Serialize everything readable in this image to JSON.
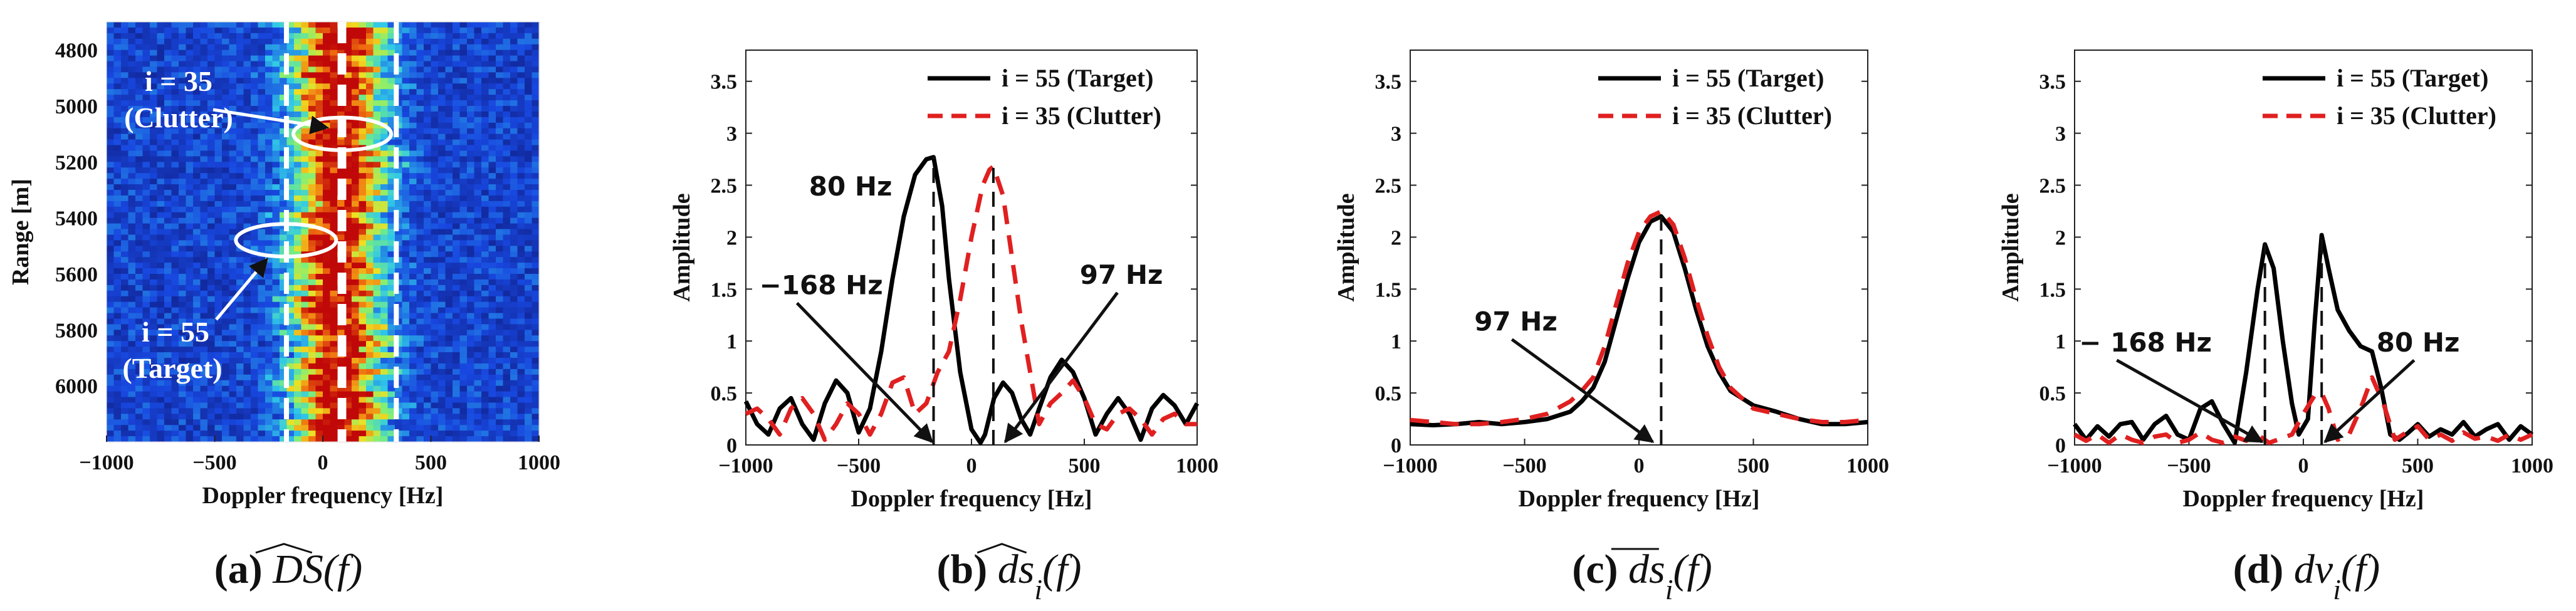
{
  "chart_data": [
    {
      "id": "a",
      "type": "heatmap",
      "caption": {
        "label": "(a)",
        "expr": "DS(f)",
        "hat": true
      },
      "xlabel": "Doppler frequency [Hz]",
      "ylabel": "Range [m]",
      "xlim": [
        -1000,
        1000
      ],
      "ylim": [
        6200,
        4700
      ],
      "xticks": [
        -1000,
        -500,
        0,
        500,
        1000
      ],
      "yticks": [
        4800,
        5000,
        5200,
        5400,
        5600,
        5800,
        6000
      ],
      "clutter_band_hz": [
        -150,
        300
      ],
      "dashed_lines_hz": [
        -168,
        80,
        97,
        340
      ],
      "annotations": [
        {
          "line1": "i = 35",
          "line2": "(Clutter)",
          "range_m": 5100,
          "freq_hz": 50
        },
        {
          "line1": "i = 55",
          "line2": "(Target)",
          "range_m": 5480,
          "freq_hz": -200
        }
      ],
      "colors": {
        "low": "#1040d0",
        "mid": "#34e0d0",
        "high": "#d01010"
      }
    },
    {
      "id": "b",
      "type": "line",
      "caption": {
        "label": "(b)",
        "expr": "ds",
        "sub": "i",
        "arg": "(f)",
        "hat": true
      },
      "xlabel": "Doppler frequency [Hz]",
      "ylabel": "Amplitude",
      "xlim": [
        -1000,
        1000
      ],
      "ylim": [
        0,
        3.8
      ],
      "xticks": [
        -1000,
        -500,
        0,
        500,
        1000
      ],
      "yticks": [
        0,
        0.5,
        1,
        1.5,
        2,
        2.5,
        3,
        3.5
      ],
      "legend": [
        "i = 55 (Target)",
        "i = 35 (Clutter)"
      ],
      "series": [
        {
          "name": "i = 55 (Target)",
          "style": "solid",
          "color": "#000000",
          "x": [
            -1000,
            -950,
            -900,
            -850,
            -800,
            -750,
            -700,
            -650,
            -600,
            -550,
            -500,
            -450,
            -400,
            -350,
            -300,
            -250,
            -200,
            -168,
            -130,
            -100,
            -50,
            0,
            40,
            60,
            100,
            140,
            180,
            220,
            260,
            300,
            350,
            400,
            450,
            500,
            550,
            600,
            650,
            700,
            750,
            800,
            850,
            900,
            950,
            1000
          ],
          "y": [
            0.42,
            0.2,
            0.1,
            0.35,
            0.45,
            0.2,
            0.05,
            0.4,
            0.62,
            0.5,
            0.12,
            0.35,
            0.9,
            1.6,
            2.2,
            2.6,
            2.75,
            2.77,
            2.3,
            1.6,
            0.7,
            0.15,
            0.02,
            0.1,
            0.45,
            0.6,
            0.5,
            0.25,
            0.1,
            0.35,
            0.65,
            0.82,
            0.7,
            0.45,
            0.1,
            0.3,
            0.45,
            0.3,
            0.05,
            0.35,
            0.48,
            0.38,
            0.2,
            0.4
          ]
        },
        {
          "name": "i = 35 (Clutter)",
          "style": "dashed",
          "color": "#e02020",
          "x": [
            -1000,
            -950,
            -900,
            -850,
            -800,
            -750,
            -700,
            -650,
            -600,
            -550,
            -500,
            -450,
            -400,
            -350,
            -300,
            -250,
            -200,
            -150,
            -100,
            -50,
            0,
            50,
            80,
            97,
            140,
            180,
            220,
            260,
            300,
            350,
            400,
            450,
            500,
            550,
            600,
            650,
            700,
            750,
            800,
            850,
            900,
            950,
            1000
          ],
          "y": [
            0.3,
            0.35,
            0.25,
            0.1,
            0.35,
            0.45,
            0.3,
            0.05,
            0.2,
            0.4,
            0.3,
            0.1,
            0.3,
            0.6,
            0.65,
            0.3,
            0.4,
            0.7,
            0.9,
            1.4,
            2.0,
            2.5,
            2.65,
            2.68,
            2.4,
            1.8,
            1.2,
            0.7,
            0.2,
            0.4,
            0.5,
            0.62,
            0.45,
            0.2,
            0.15,
            0.3,
            0.35,
            0.25,
            0.1,
            0.25,
            0.3,
            0.2,
            0.2
          ]
        }
      ],
      "vlines_hz": [
        -168,
        97
      ],
      "arrow_labels": [
        {
          "text": "80 Hz",
          "x_hz": -720,
          "y": 2.4,
          "tx_hz": -190,
          "ty": 2.55,
          "arrow": false
        },
        {
          "text": "−168 Hz",
          "x_hz": -940,
          "y": 1.45,
          "tx_hz": -175,
          "ty": 0.03,
          "arrow": true
        },
        {
          "text": "97 Hz",
          "x_hz": 480,
          "y": 1.55,
          "tx_hz": 150,
          "ty": 0.03,
          "arrow": true
        }
      ]
    },
    {
      "id": "c",
      "type": "line",
      "caption": {
        "label": "(c)",
        "expr": "ds",
        "sub": "i",
        "arg": "(f)",
        "bar": true
      },
      "xlabel": "Doppler frequency [Hz]",
      "ylabel": "Amplitude",
      "xlim": [
        -1000,
        1000
      ],
      "ylim": [
        0,
        3.8
      ],
      "xticks": [
        -1000,
        -500,
        0,
        500,
        1000
      ],
      "yticks": [
        0,
        0.5,
        1,
        1.5,
        2,
        2.5,
        3,
        3.5
      ],
      "legend": [
        "i = 55 (Target)",
        "i = 35 (Clutter)"
      ],
      "series": [
        {
          "name": "i = 55 (Target)",
          "style": "solid",
          "color": "#000000",
          "x": [
            -1000,
            -900,
            -800,
            -700,
            -600,
            -500,
            -400,
            -300,
            -250,
            -200,
            -150,
            -100,
            -50,
            0,
            50,
            97,
            150,
            200,
            250,
            300,
            350,
            400,
            500,
            600,
            700,
            800,
            900,
            1000
          ],
          "y": [
            0.2,
            0.19,
            0.2,
            0.22,
            0.2,
            0.22,
            0.25,
            0.32,
            0.42,
            0.55,
            0.8,
            1.2,
            1.6,
            1.95,
            2.15,
            2.2,
            2.05,
            1.7,
            1.3,
            0.95,
            0.7,
            0.52,
            0.38,
            0.32,
            0.25,
            0.2,
            0.2,
            0.22
          ]
        },
        {
          "name": "i = 35 (Clutter)",
          "style": "dashed",
          "color": "#e02020",
          "x": [
            -1000,
            -900,
            -800,
            -700,
            -600,
            -500,
            -400,
            -300,
            -250,
            -200,
            -150,
            -100,
            -50,
            0,
            50,
            100,
            150,
            200,
            250,
            300,
            350,
            400,
            500,
            600,
            700,
            800,
            900,
            1000
          ],
          "y": [
            0.24,
            0.22,
            0.2,
            0.2,
            0.22,
            0.25,
            0.3,
            0.42,
            0.52,
            0.65,
            0.95,
            1.35,
            1.75,
            2.05,
            2.2,
            2.25,
            2.12,
            1.8,
            1.4,
            1.05,
            0.75,
            0.55,
            0.35,
            0.3,
            0.25,
            0.22,
            0.22,
            0.24
          ]
        }
      ],
      "vlines_hz": [
        97
      ],
      "arrow_labels": [
        {
          "text": "97 Hz",
          "x_hz": -720,
          "y": 1.1,
          "tx_hz": 60,
          "ty": 0.03,
          "arrow": true
        }
      ]
    },
    {
      "id": "d",
      "type": "line",
      "caption": {
        "label": "(d)",
        "expr": "dv",
        "sub": "i",
        "arg": "(f)"
      },
      "xlabel": "Doppler frequency [Hz]",
      "ylabel": "Amplitude",
      "xlim": [
        -1000,
        1000
      ],
      "ylim": [
        0,
        3.8
      ],
      "xticks": [
        -1000,
        -500,
        0,
        500,
        1000
      ],
      "yticks": [
        0,
        0.5,
        1,
        1.5,
        2,
        2.5,
        3,
        3.5
      ],
      "legend": [
        "i = 55 (Target)",
        "i = 35 (Clutter)"
      ],
      "series": [
        {
          "name": "i = 55 (Target)",
          "style": "solid",
          "color": "#000000",
          "x": [
            -1000,
            -950,
            -900,
            -850,
            -800,
            -750,
            -700,
            -650,
            -600,
            -550,
            -500,
            -450,
            -400,
            -350,
            -300,
            -250,
            -200,
            -168,
            -130,
            -90,
            -50,
            -20,
            20,
            50,
            80,
            110,
            150,
            200,
            250,
            300,
            340,
            380,
            420,
            460,
            500,
            550,
            600,
            650,
            700,
            750,
            800,
            850,
            900,
            950,
            1000
          ],
          "y": [
            0.2,
            0.05,
            0.18,
            0.08,
            0.2,
            0.22,
            0.05,
            0.2,
            0.28,
            0.1,
            0.05,
            0.35,
            0.42,
            0.2,
            0.02,
            0.7,
            1.5,
            1.93,
            1.7,
            1.0,
            0.4,
            0.1,
            0.25,
            1.2,
            2.02,
            1.7,
            1.3,
            1.1,
            0.95,
            0.9,
            0.55,
            0.1,
            0.05,
            0.12,
            0.2,
            0.08,
            0.15,
            0.1,
            0.22,
            0.08,
            0.15,
            0.2,
            0.05,
            0.18,
            0.1
          ]
        },
        {
          "name": "i = 35 (Clutter)",
          "style": "dashed",
          "color": "#e02020",
          "x": [
            -1000,
            -950,
            -900,
            -850,
            -800,
            -750,
            -700,
            -650,
            -600,
            -550,
            -500,
            -450,
            -400,
            -350,
            -300,
            -250,
            -200,
            -150,
            -100,
            -50,
            0,
            50,
            80,
            110,
            150,
            200,
            250,
            300,
            350,
            400,
            450,
            500,
            550,
            600,
            650,
            700,
            750,
            800,
            850,
            900,
            950,
            1000
          ],
          "y": [
            0.1,
            0.04,
            0.1,
            0.02,
            0.1,
            0.05,
            0.02,
            0.08,
            0.1,
            0.02,
            0.05,
            0.12,
            0.05,
            0.02,
            0.08,
            0.04,
            0.1,
            0.02,
            0.06,
            0.1,
            0.3,
            0.48,
            0.5,
            0.35,
            0.05,
            0.1,
            0.35,
            0.65,
            0.4,
            0.05,
            0.12,
            0.18,
            0.05,
            0.1,
            0.04,
            0.12,
            0.06,
            0.08,
            0.04,
            0.1,
            0.05,
            0.1
          ]
        }
      ],
      "vlines_hz": [
        -168,
        80
      ],
      "arrow_labels": [
        {
          "text": "− 168 Hz",
          "x_hz": -980,
          "y": 0.9,
          "tx_hz": -180,
          "ty": 0.03,
          "arrow": true
        },
        {
          "text": "80 Hz",
          "x_hz": 320,
          "y": 0.9,
          "tx_hz": 95,
          "ty": 0.03,
          "arrow": true
        }
      ]
    }
  ]
}
